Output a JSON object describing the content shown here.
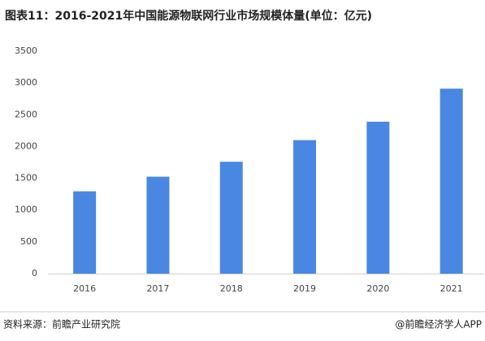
{
  "chart_data": {
    "type": "bar",
    "title": "图表11：2016-2021年中国能源物联网行业市场规模体量(单位：亿元)",
    "categories": [
      "2016",
      "2017",
      "2018",
      "2019",
      "2020",
      "2021"
    ],
    "values": [
      1295,
      1525,
      1760,
      2100,
      2390,
      2910
    ],
    "color": "#4a87e2",
    "ylim": [
      0,
      3500
    ],
    "yticks": [
      0,
      500,
      1000,
      1500,
      2000,
      2500,
      3000,
      3500
    ],
    "grid": false
  },
  "footer": {
    "source": "资料来源：前瞻产业研究院",
    "credit": "@前瞻经济学人APP"
  }
}
